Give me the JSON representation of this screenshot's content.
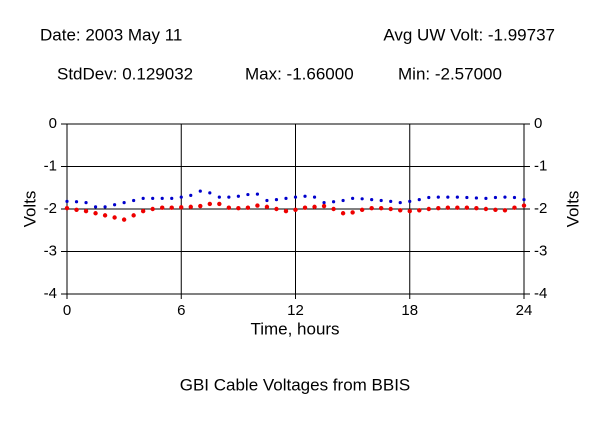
{
  "chart_data": {
    "type": "scatter",
    "title": "GBI Cable Voltages from BBIS",
    "annotations": [
      "Date: 2003 May 11",
      "Avg UW Volt: -1.99737",
      "StdDev: 0.129032",
      "Max: -1.66000",
      "Min: -2.57000"
    ],
    "xlabel": "Time, hours",
    "ylabel": "Volts",
    "x": [
      0,
      0.5,
      1,
      1.5,
      2,
      2.5,
      3,
      3.5,
      4,
      4.5,
      5,
      5.5,
      6,
      6.5,
      7,
      7.5,
      8,
      8.5,
      9,
      9.5,
      10,
      10.5,
      11,
      11.5,
      12,
      12.5,
      13,
      13.5,
      14,
      14.5,
      15,
      15.5,
      16,
      16.5,
      17,
      17.5,
      18,
      18.5,
      19,
      19.5,
      20,
      20.5,
      21,
      21.5,
      22,
      22.5,
      23,
      23.5,
      24
    ],
    "series": [
      {
        "color": "#0000cc",
        "values": [
          -1.82,
          -1.83,
          -1.85,
          -1.95,
          -1.95,
          -1.9,
          -1.85,
          -1.8,
          -1.75,
          -1.75,
          -1.75,
          -1.75,
          -1.72,
          -1.68,
          -1.58,
          -1.62,
          -1.72,
          -1.72,
          -1.7,
          -1.66,
          -1.65,
          -1.8,
          -1.78,
          -1.75,
          -1.72,
          -1.7,
          -1.72,
          -1.85,
          -1.83,
          -1.8,
          -1.75,
          -1.76,
          -1.78,
          -1.8,
          -1.82,
          -1.85,
          -1.82,
          -1.78,
          -1.73,
          -1.72,
          -1.72,
          -1.72,
          -1.73,
          -1.74,
          -1.75,
          -1.73,
          -1.72,
          -1.73,
          -1.78
        ]
      },
      {
        "color": "#ee0000",
        "values": [
          -1.98,
          -2.02,
          -2.05,
          -2.1,
          -2.15,
          -2.2,
          -2.25,
          -2.15,
          -2.05,
          -2.0,
          -1.97,
          -1.97,
          -1.96,
          -1.95,
          -1.93,
          -1.88,
          -1.88,
          -1.97,
          -1.98,
          -1.97,
          -1.92,
          -1.95,
          -2.0,
          -2.05,
          -2.02,
          -1.97,
          -1.95,
          -1.93,
          -2.0,
          -2.1,
          -2.08,
          -2.02,
          -1.98,
          -1.98,
          -2.0,
          -2.03,
          -2.05,
          -2.03,
          -2.0,
          -1.98,
          -1.97,
          -1.97,
          -1.97,
          -1.98,
          -2.0,
          -2.02,
          -2.03,
          -1.97,
          -1.92
        ]
      }
    ],
    "xlim": [
      0,
      24
    ],
    "xticks": [
      0,
      6,
      12,
      18,
      24
    ],
    "ylim": [
      -4,
      0
    ],
    "yticks": [
      0,
      -1,
      -2,
      -3,
      -4
    ],
    "grid": true
  }
}
